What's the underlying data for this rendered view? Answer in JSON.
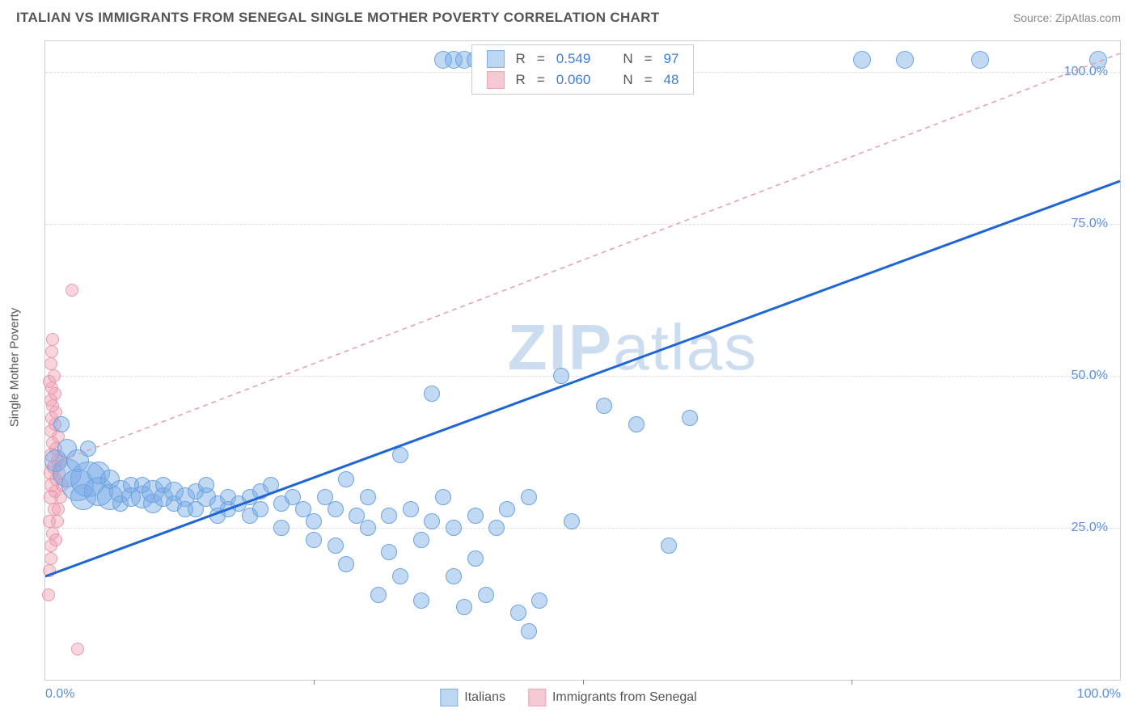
{
  "header": {
    "title": "ITALIAN VS IMMIGRANTS FROM SENEGAL SINGLE MOTHER POVERTY CORRELATION CHART",
    "source_prefix": "Source: ",
    "source_name": "ZipAtlas.com"
  },
  "chart": {
    "type": "scatter",
    "y_axis_label": "Single Mother Poverty",
    "background_color": "#ffffff",
    "grid_color": "#dddddd",
    "border_color": "#cccccc",
    "xlim": [
      0,
      100
    ],
    "ylim": [
      0,
      105
    ],
    "x_tick_labels": {
      "left": "0.0%",
      "right": "100.0%"
    },
    "x_minor_ticks": [
      25,
      50,
      75
    ],
    "y_ticks": [
      {
        "v": 25,
        "label": "25.0%"
      },
      {
        "v": 50,
        "label": "50.0%"
      },
      {
        "v": 75,
        "label": "75.0%"
      },
      {
        "v": 100,
        "label": "100.0%"
      }
    ],
    "tick_label_color": "#5b8dd6",
    "tick_label_fontsize": 16,
    "axis_label_fontsize": 15,
    "axis_label_color": "#555555",
    "watermark_text_bold": "ZIP",
    "watermark_text_light": "atlas",
    "watermark_color": "rgba(143,179,222,0.45)",
    "watermark_fontsize": 80,
    "series": [
      {
        "name": "Italians",
        "label": "Italians",
        "fill_color": "rgba(120,170,230,0.45)",
        "stroke_color": "#6da3e0",
        "swatch_fill": "#bdd6f2",
        "swatch_border": "#7fb0e5",
        "trend": {
          "type": "solid",
          "color": "#1f65d6",
          "width": 3,
          "x1": 0,
          "y1": 17,
          "x2": 100,
          "y2": 82
        },
        "legend_R": "0.549",
        "legend_N": "97",
        "points": [
          {
            "x": 1,
            "y": 36,
            "r": 14
          },
          {
            "x": 1.5,
            "y": 42,
            "r": 10
          },
          {
            "x": 2,
            "y": 34,
            "r": 18
          },
          {
            "x": 2,
            "y": 38,
            "r": 12
          },
          {
            "x": 3,
            "y": 32,
            "r": 20
          },
          {
            "x": 3,
            "y": 36,
            "r": 14
          },
          {
            "x": 3.5,
            "y": 30,
            "r": 16
          },
          {
            "x": 4,
            "y": 33,
            "r": 22
          },
          {
            "x": 4,
            "y": 38,
            "r": 10
          },
          {
            "x": 5,
            "y": 31,
            "r": 18
          },
          {
            "x": 5,
            "y": 34,
            "r": 14
          },
          {
            "x": 6,
            "y": 30,
            "r": 16
          },
          {
            "x": 6,
            "y": 33,
            "r": 12
          },
          {
            "x": 7,
            "y": 31,
            "r": 14
          },
          {
            "x": 7,
            "y": 29,
            "r": 10
          },
          {
            "x": 8,
            "y": 30,
            "r": 12
          },
          {
            "x": 8,
            "y": 32,
            "r": 10
          },
          {
            "x": 9,
            "y": 30,
            "r": 14
          },
          {
            "x": 9,
            "y": 32,
            "r": 10
          },
          {
            "x": 10,
            "y": 29,
            "r": 12
          },
          {
            "x": 10,
            "y": 31,
            "r": 14
          },
          {
            "x": 11,
            "y": 30,
            "r": 12
          },
          {
            "x": 11,
            "y": 32,
            "r": 10
          },
          {
            "x": 12,
            "y": 31,
            "r": 12
          },
          {
            "x": 12,
            "y": 29,
            "r": 10
          },
          {
            "x": 13,
            "y": 30,
            "r": 12
          },
          {
            "x": 13,
            "y": 28,
            "r": 10
          },
          {
            "x": 14,
            "y": 31,
            "r": 10
          },
          {
            "x": 14,
            "y": 28,
            "r": 10
          },
          {
            "x": 15,
            "y": 30,
            "r": 12
          },
          {
            "x": 15,
            "y": 32,
            "r": 10
          },
          {
            "x": 16,
            "y": 29,
            "r": 10
          },
          {
            "x": 16,
            "y": 27,
            "r": 10
          },
          {
            "x": 17,
            "y": 30,
            "r": 10
          },
          {
            "x": 17,
            "y": 28,
            "r": 10
          },
          {
            "x": 18,
            "y": 29,
            "r": 10
          },
          {
            "x": 19,
            "y": 30,
            "r": 10
          },
          {
            "x": 19,
            "y": 27,
            "r": 10
          },
          {
            "x": 20,
            "y": 31,
            "r": 10
          },
          {
            "x": 20,
            "y": 28,
            "r": 10
          },
          {
            "x": 21,
            "y": 32,
            "r": 10
          },
          {
            "x": 22,
            "y": 25,
            "r": 10
          },
          {
            "x": 22,
            "y": 29,
            "r": 10
          },
          {
            "x": 23,
            "y": 30,
            "r": 10
          },
          {
            "x": 24,
            "y": 28,
            "r": 10
          },
          {
            "x": 25,
            "y": 26,
            "r": 10
          },
          {
            "x": 25,
            "y": 23,
            "r": 10
          },
          {
            "x": 26,
            "y": 30,
            "r": 10
          },
          {
            "x": 27,
            "y": 28,
            "r": 10
          },
          {
            "x": 27,
            "y": 22,
            "r": 10
          },
          {
            "x": 28,
            "y": 33,
            "r": 10
          },
          {
            "x": 28,
            "y": 19,
            "r": 10
          },
          {
            "x": 29,
            "y": 27,
            "r": 10
          },
          {
            "x": 30,
            "y": 30,
            "r": 10
          },
          {
            "x": 30,
            "y": 25,
            "r": 10
          },
          {
            "x": 31,
            "y": 14,
            "r": 10
          },
          {
            "x": 32,
            "y": 27,
            "r": 10
          },
          {
            "x": 32,
            "y": 21,
            "r": 10
          },
          {
            "x": 33,
            "y": 37,
            "r": 10
          },
          {
            "x": 33,
            "y": 17,
            "r": 10
          },
          {
            "x": 34,
            "y": 28,
            "r": 10
          },
          {
            "x": 35,
            "y": 23,
            "r": 10
          },
          {
            "x": 35,
            "y": 13,
            "r": 10
          },
          {
            "x": 36,
            "y": 47,
            "r": 10
          },
          {
            "x": 36,
            "y": 26,
            "r": 10
          },
          {
            "x": 37,
            "y": 30,
            "r": 10
          },
          {
            "x": 38,
            "y": 17,
            "r": 10
          },
          {
            "x": 38,
            "y": 25,
            "r": 10
          },
          {
            "x": 39,
            "y": 12,
            "r": 10
          },
          {
            "x": 40,
            "y": 27,
            "r": 10
          },
          {
            "x": 40,
            "y": 20,
            "r": 10
          },
          {
            "x": 41,
            "y": 14,
            "r": 10
          },
          {
            "x": 42,
            "y": 25,
            "r": 10
          },
          {
            "x": 43,
            "y": 28,
            "r": 10
          },
          {
            "x": 44,
            "y": 11,
            "r": 10
          },
          {
            "x": 45,
            "y": 30,
            "r": 10
          },
          {
            "x": 45,
            "y": 8,
            "r": 10
          },
          {
            "x": 46,
            "y": 13,
            "r": 10
          },
          {
            "x": 48,
            "y": 50,
            "r": 10
          },
          {
            "x": 49,
            "y": 26,
            "r": 10
          },
          {
            "x": 52,
            "y": 45,
            "r": 10
          },
          {
            "x": 55,
            "y": 42,
            "r": 10
          },
          {
            "x": 58,
            "y": 22,
            "r": 10
          },
          {
            "x": 60,
            "y": 43,
            "r": 10
          },
          {
            "x": 37,
            "y": 102,
            "r": 11
          },
          {
            "x": 38,
            "y": 102,
            "r": 11
          },
          {
            "x": 39,
            "y": 102,
            "r": 11
          },
          {
            "x": 40,
            "y": 102,
            "r": 11
          },
          {
            "x": 76,
            "y": 102,
            "r": 11
          },
          {
            "x": 80,
            "y": 102,
            "r": 11
          },
          {
            "x": 87,
            "y": 102,
            "r": 11
          },
          {
            "x": 98,
            "y": 102,
            "r": 11
          }
        ]
      },
      {
        "name": "Immigrants from Senegal",
        "label": "Immigrants from Senegal",
        "fill_color": "rgba(240,160,180,0.45)",
        "stroke_color": "#e89ab0",
        "swatch_fill": "#f5c9d4",
        "swatch_border": "#eda4b8",
        "trend": {
          "type": "dashed",
          "color": "#e89ab0",
          "width": 1.5,
          "x1": 0,
          "y1": 35,
          "x2": 100,
          "y2": 103
        },
        "legend_R": "0.060",
        "legend_N": "48",
        "points": [
          {
            "x": 0.3,
            "y": 14,
            "r": 8
          },
          {
            "x": 0.5,
            "y": 20,
            "r": 8
          },
          {
            "x": 0.5,
            "y": 22,
            "r": 8
          },
          {
            "x": 0.7,
            "y": 24,
            "r": 8
          },
          {
            "x": 0.4,
            "y": 26,
            "r": 8
          },
          {
            "x": 0.8,
            "y": 28,
            "r": 8
          },
          {
            "x": 0.5,
            "y": 30,
            "r": 9
          },
          {
            "x": 0.9,
            "y": 31,
            "r": 8
          },
          {
            "x": 0.6,
            "y": 32,
            "r": 9
          },
          {
            "x": 1.0,
            "y": 33,
            "r": 8
          },
          {
            "x": 0.5,
            "y": 34,
            "r": 9
          },
          {
            "x": 0.8,
            "y": 35,
            "r": 9
          },
          {
            "x": 1.1,
            "y": 36,
            "r": 8
          },
          {
            "x": 0.6,
            "y": 37,
            "r": 9
          },
          {
            "x": 1.0,
            "y": 38,
            "r": 8
          },
          {
            "x": 0.7,
            "y": 39,
            "r": 8
          },
          {
            "x": 1.2,
            "y": 40,
            "r": 8
          },
          {
            "x": 0.5,
            "y": 41,
            "r": 8
          },
          {
            "x": 0.9,
            "y": 42,
            "r": 8
          },
          {
            "x": 0.6,
            "y": 43,
            "r": 8
          },
          {
            "x": 1.0,
            "y": 44,
            "r": 8
          },
          {
            "x": 0.7,
            "y": 45,
            "r": 8
          },
          {
            "x": 0.5,
            "y": 46,
            "r": 8
          },
          {
            "x": 0.9,
            "y": 47,
            "r": 8
          },
          {
            "x": 0.6,
            "y": 48,
            "r": 8
          },
          {
            "x": 0.4,
            "y": 49,
            "r": 8
          },
          {
            "x": 0.8,
            "y": 50,
            "r": 8
          },
          {
            "x": 0.5,
            "y": 52,
            "r": 8
          },
          {
            "x": 0.6,
            "y": 54,
            "r": 8
          },
          {
            "x": 0.7,
            "y": 56,
            "r": 8
          },
          {
            "x": 2.5,
            "y": 64,
            "r": 8
          },
          {
            "x": 3,
            "y": 5,
            "r": 8
          },
          {
            "x": 0.4,
            "y": 18,
            "r": 8
          },
          {
            "x": 1.3,
            "y": 34,
            "r": 8
          },
          {
            "x": 1.4,
            "y": 30,
            "r": 8
          },
          {
            "x": 1.5,
            "y": 36,
            "r": 8
          },
          {
            "x": 1.6,
            "y": 32,
            "r": 8
          },
          {
            "x": 1.2,
            "y": 28,
            "r": 8
          },
          {
            "x": 1.1,
            "y": 26,
            "r": 8
          },
          {
            "x": 1.0,
            "y": 23,
            "r": 8
          }
        ]
      }
    ]
  },
  "top_legend": {
    "R_label": "R",
    "N_label": "N",
    "eq": " = ",
    "value_color": "#3b7dd8",
    "label_color": "#555555",
    "fontsize": 17
  },
  "bottom_legend": {
    "fontsize": 16,
    "color": "#555555"
  }
}
